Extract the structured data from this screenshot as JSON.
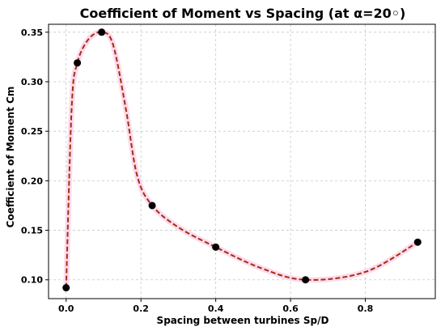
{
  "chart_data": {
    "type": "line",
    "title": "Coefficient of Moment vs Spacing (at α=20◦)",
    "xlabel": "Spacing between turbines Sp/D",
    "ylabel": "Coefficient of Moment Cm",
    "xlim": [
      -0.047,
      0.987
    ],
    "ylim": [
      0.081,
      0.358
    ],
    "xticks": [
      0.0,
      0.2,
      0.4,
      0.6,
      0.8
    ],
    "xtick_labels": [
      "0.0",
      "0.2",
      "0.4",
      "0.6",
      "0.8"
    ],
    "yticks": [
      0.1,
      0.15,
      0.2,
      0.25,
      0.3,
      0.35
    ],
    "ytick_labels": [
      "0.10",
      "0.15",
      "0.20",
      "0.25",
      "0.30",
      "0.35"
    ],
    "grid": true,
    "series": [
      {
        "marker": "circle",
        "marker_color": "#000000",
        "x": [
          0.0,
          0.03,
          0.095,
          0.23,
          0.4,
          0.64,
          0.94
        ],
        "y": [
          0.092,
          0.319,
          0.35,
          0.175,
          0.133,
          0.1,
          0.138
        ]
      }
    ],
    "fit_curve": {
      "style": "dashed",
      "color": "#a0300a",
      "glow_color": "#ffd6ec",
      "x": [
        0.0,
        0.015,
        0.03,
        0.06,
        0.095,
        0.125,
        0.16,
        0.19,
        0.23,
        0.3,
        0.4,
        0.52,
        0.64,
        0.8,
        0.94
      ],
      "y": [
        0.092,
        0.275,
        0.319,
        0.343,
        0.35,
        0.338,
        0.272,
        0.205,
        0.175,
        0.153,
        0.133,
        0.112,
        0.1,
        0.108,
        0.138
      ]
    }
  }
}
